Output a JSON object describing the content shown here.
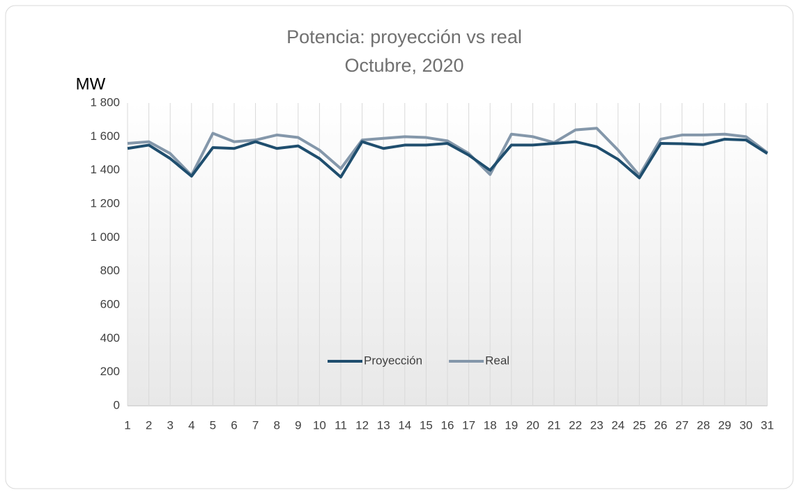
{
  "chart_data": {
    "type": "line",
    "title": "Potencia: proyección vs real",
    "subtitle": "Octubre, 2020",
    "y_label": "MW",
    "categories": [
      "1",
      "2",
      "3",
      "4",
      "5",
      "6",
      "7",
      "8",
      "9",
      "10",
      "11",
      "12",
      "13",
      "14",
      "15",
      "16",
      "17",
      "18",
      "19",
      "20",
      "21",
      "22",
      "23",
      "24",
      "25",
      "26",
      "27",
      "28",
      "29",
      "30",
      "31"
    ],
    "series": [
      {
        "name": "Proyección",
        "color": "#1f4e6e",
        "values": [
          1530,
          1550,
          1470,
          1365,
          1535,
          1530,
          1570,
          1530,
          1545,
          1470,
          1360,
          1570,
          1530,
          1550,
          1550,
          1560,
          1490,
          1400,
          1550,
          1550,
          1560,
          1570,
          1540,
          1465,
          1355,
          1560,
          1558,
          1553,
          1585,
          1580,
          1500
        ]
      },
      {
        "name": "Real",
        "color": "#8497aa",
        "values": [
          1560,
          1570,
          1500,
          1370,
          1620,
          1570,
          1580,
          1610,
          1595,
          1520,
          1410,
          1580,
          1590,
          1600,
          1595,
          1575,
          1500,
          1375,
          1615,
          1600,
          1565,
          1640,
          1650,
          1520,
          1370,
          1585,
          1610,
          1610,
          1615,
          1600,
          1505
        ]
      }
    ],
    "ylim": [
      0,
      1800
    ],
    "yticks": [
      0,
      200,
      400,
      600,
      800,
      {
        "value": 1000,
        "label": "1 000"
      },
      {
        "value": 1200,
        "label": "1 200"
      },
      {
        "value": 1400,
        "label": "1 400"
      },
      {
        "value": 1600,
        "label": "1 600"
      },
      {
        "value": 1800,
        "label": "1 800"
      }
    ],
    "grid": true,
    "legend": "center"
  }
}
